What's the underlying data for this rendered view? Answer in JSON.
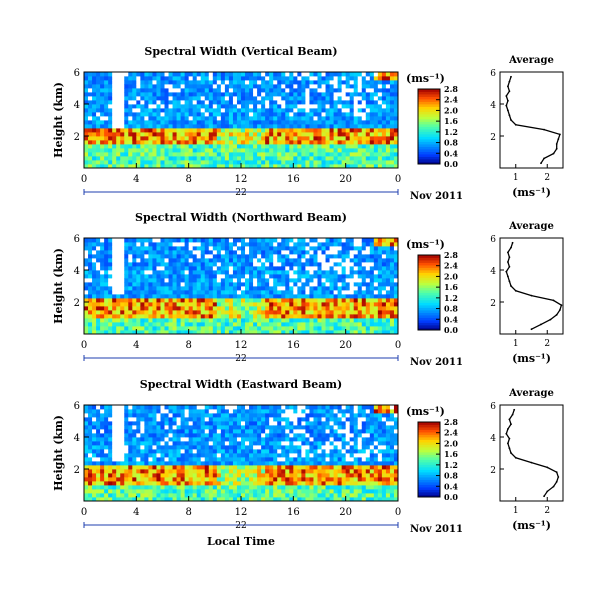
{
  "xlabel": "Local Time",
  "date_label": "Nov 2011",
  "day_label": "22",
  "ylabel": "Height (km)",
  "unit_label": "(ms⁻¹)",
  "average_title": "Average",
  "chart_data": [
    {
      "type": "heatmap",
      "title": "Spectral Width (Vertical Beam)",
      "xlabel": "",
      "ylabel": "Height (km)",
      "xlim": [
        0,
        24
      ],
      "ylim": [
        0,
        6
      ],
      "xticks": [
        "0",
        "4",
        "8",
        "12",
        "16",
        "20",
        "0"
      ],
      "yticks": [
        "2",
        "4",
        "6"
      ],
      "colorbar": {
        "label": "(ms⁻¹)",
        "range": [
          0,
          2.8
        ],
        "ticks": [
          "0.0",
          "0.4",
          "0.8",
          "1.2",
          "1.6",
          "2.0",
          "2.4",
          "2.8"
        ]
      },
      "high_band_km": [
        1.5,
        2.6
      ],
      "profile": {
        "title": "Average",
        "xlabel": "(ms⁻¹)",
        "xlim": [
          0.5,
          2.5
        ],
        "ylim": [
          0,
          6
        ],
        "xticks": [
          "1",
          "2"
        ],
        "yticks": [
          "2",
          "4",
          "6"
        ],
        "heights": [
          0.3,
          0.6,
          0.9,
          1.2,
          1.5,
          1.8,
          2.1,
          2.4,
          2.7,
          3.0,
          3.3,
          3.6,
          3.9,
          4.2,
          4.5,
          4.8,
          5.1,
          5.4,
          5.7
        ],
        "values": [
          1.8,
          1.9,
          2.2,
          2.3,
          2.3,
          2.35,
          2.4,
          1.9,
          1.0,
          0.85,
          0.8,
          0.75,
          0.7,
          0.75,
          0.7,
          0.8,
          0.75,
          0.8,
          0.85
        ]
      }
    },
    {
      "type": "heatmap",
      "title": "Spectral Width (Northward Beam)",
      "xlabel": "",
      "ylabel": "Height (km)",
      "xlim": [
        0,
        24
      ],
      "ylim": [
        0,
        6
      ],
      "xticks": [
        "0",
        "4",
        "8",
        "12",
        "16",
        "20",
        "0"
      ],
      "yticks": [
        "2",
        "4",
        "6"
      ],
      "colorbar": {
        "label": "(ms⁻¹)",
        "range": [
          0,
          2.8
        ],
        "ticks": [
          "0.0",
          "0.4",
          "0.8",
          "1.2",
          "1.6",
          "2.0",
          "2.4",
          "2.8"
        ]
      },
      "high_band_km": [
        1.0,
        2.2
      ],
      "profile": {
        "title": "Average",
        "xlabel": "(ms⁻¹)",
        "xlim": [
          0.5,
          2.5
        ],
        "ylim": [
          0,
          6
        ],
        "xticks": [
          "1",
          "2"
        ],
        "yticks": [
          "2",
          "4",
          "6"
        ],
        "heights": [
          0.3,
          0.6,
          0.9,
          1.2,
          1.5,
          1.8,
          2.1,
          2.4,
          2.7,
          3.0,
          3.3,
          3.6,
          3.9,
          4.2,
          4.5,
          4.8,
          5.1,
          5.4,
          5.7
        ],
        "values": [
          1.5,
          1.8,
          2.1,
          2.3,
          2.4,
          2.45,
          2.2,
          1.5,
          1.0,
          0.85,
          0.8,
          0.75,
          0.7,
          0.8,
          0.75,
          0.8,
          0.75,
          0.85,
          0.9
        ]
      }
    },
    {
      "type": "heatmap",
      "title": "Spectral Width (Eastward Beam)",
      "xlabel": "Local Time",
      "ylabel": "Height (km)",
      "xlim": [
        0,
        24
      ],
      "ylim": [
        0,
        6
      ],
      "xticks": [
        "0",
        "4",
        "8",
        "12",
        "16",
        "20",
        "0"
      ],
      "yticks": [
        "2",
        "4",
        "6"
      ],
      "colorbar": {
        "label": "(ms⁻¹)",
        "range": [
          0,
          2.8
        ],
        "ticks": [
          "0.0",
          "0.4",
          "0.8",
          "1.2",
          "1.6",
          "2.0",
          "2.4",
          "2.8"
        ]
      },
      "high_band_km": [
        1.0,
        2.3
      ],
      "profile": {
        "title": "Average",
        "xlabel": "(ms⁻¹)",
        "xlim": [
          0.5,
          2.5
        ],
        "ylim": [
          0,
          6
        ],
        "xticks": [
          "1",
          "2"
        ],
        "yticks": [
          "2",
          "4",
          "6"
        ],
        "heights": [
          0.3,
          0.6,
          0.9,
          1.2,
          1.5,
          1.8,
          2.1,
          2.4,
          2.7,
          3.0,
          3.3,
          3.6,
          3.9,
          4.2,
          4.5,
          4.8,
          5.1,
          5.4,
          5.7
        ],
        "values": [
          1.9,
          2.0,
          2.2,
          2.3,
          2.35,
          2.3,
          2.0,
          1.5,
          1.0,
          0.85,
          0.8,
          0.75,
          0.8,
          0.7,
          0.75,
          0.85,
          0.8,
          0.9,
          0.95
        ]
      }
    }
  ]
}
